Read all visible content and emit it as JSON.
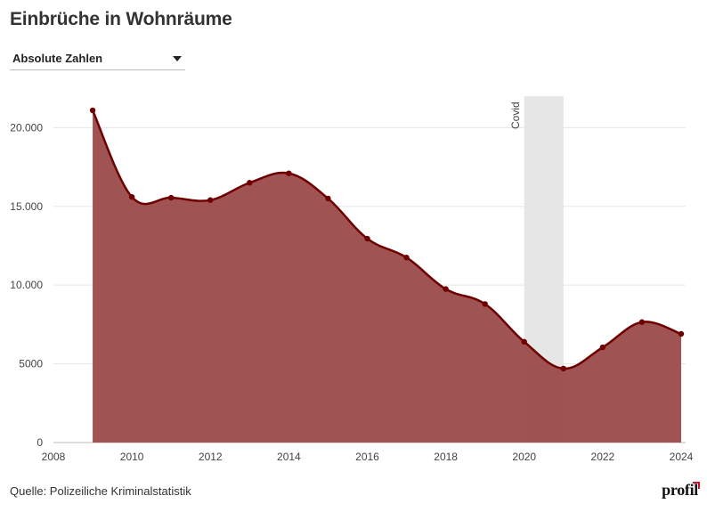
{
  "title": "Einbrüche in Wohnräume",
  "dropdown": {
    "selected": "Absolute Zahlen"
  },
  "source": "Quelle: Polizeiliche Kriminalstatistik",
  "logo": "profil",
  "colors": {
    "line": "#6e0000",
    "area": "#9b4a4a",
    "band": "#e6e6e6",
    "grid": "#e6e6e6",
    "accent": "#c8102e"
  },
  "chart_data": {
    "type": "area",
    "x": [
      2009,
      2010,
      2011,
      2012,
      2013,
      2014,
      2015,
      2016,
      2017,
      2018,
      2019,
      2020,
      2021,
      2022,
      2023,
      2024
    ],
    "series": [
      {
        "values": [
          21100,
          15600,
          15550,
          15400,
          16500,
          17100,
          15500,
          12950,
          11750,
          9750,
          8800,
          6400,
          4700,
          6050,
          7650,
          6900
        ]
      }
    ],
    "xlim": [
      2008,
      2024
    ],
    "ylim": [
      0,
      22000
    ],
    "xticks": [
      2008,
      2010,
      2012,
      2014,
      2016,
      2018,
      2020,
      2022,
      2024
    ],
    "yticks": [
      0,
      5000,
      10000,
      15000,
      20000
    ],
    "ytick_labels": [
      "0",
      "5000",
      "10.000",
      "15.000",
      "20.000"
    ],
    "annotation": {
      "label": "Covid",
      "from": 2020,
      "to": 2021
    },
    "grid": true
  }
}
